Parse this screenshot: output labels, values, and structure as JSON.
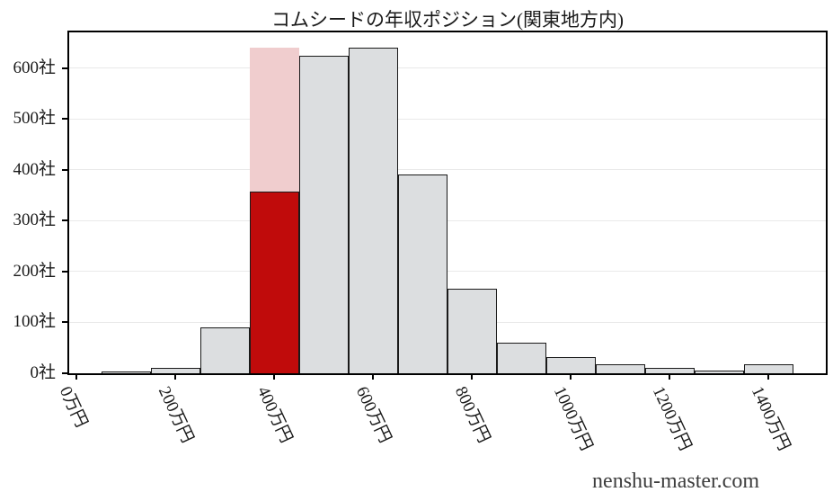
{
  "watermark": {
    "text": "nenshu-master.com"
  },
  "chart_data": {
    "type": "bar",
    "title": "コムシードの年収ポジション(関東地方内)",
    "categories": [
      "100万円",
      "200万円",
      "300万円",
      "400万円",
      "500万円",
      "600万円",
      "700万円",
      "800万円",
      "900万円",
      "1000万円",
      "1100万円",
      "1200万円",
      "1300万円",
      "1400万円"
    ],
    "bin_centers_man_yen": [
      100,
      200,
      300,
      400,
      500,
      600,
      700,
      800,
      900,
      1000,
      1100,
      1200,
      1300,
      1400
    ],
    "bin_width_man_yen": 100,
    "values": [
      2,
      10,
      90,
      358,
      624,
      640,
      390,
      166,
      61,
      32,
      17,
      11,
      6,
      17
    ],
    "ylabel_unit": "社",
    "xlabel_unit": "万円",
    "highlight": {
      "category": "400万円",
      "value": 358,
      "band_top_value": 640
    },
    "x_ticks": [
      {
        "value": 0,
        "label": "0万円"
      },
      {
        "value": 200,
        "label": "200万円"
      },
      {
        "value": 400,
        "label": "400万円"
      },
      {
        "value": 600,
        "label": "600万円"
      },
      {
        "value": 800,
        "label": "800万円"
      },
      {
        "value": 1000,
        "label": "1000万円"
      },
      {
        "value": 1200,
        "label": "1200万円"
      },
      {
        "value": 1400,
        "label": "1400万円"
      }
    ],
    "y_ticks": [
      {
        "value": 0,
        "label": "0社"
      },
      {
        "value": 100,
        "label": "100社"
      },
      {
        "value": 200,
        "label": "200社"
      },
      {
        "value": 300,
        "label": "300社"
      },
      {
        "value": 400,
        "label": "400社"
      },
      {
        "value": 500,
        "label": "500社"
      },
      {
        "value": 600,
        "label": "600社"
      }
    ],
    "ylim": [
      0,
      670
    ],
    "xlim_man_yen": [
      -15,
      1516
    ],
    "grid": "horizontal",
    "legend": "none",
    "colors": {
      "bar_fill": "#dcdee0",
      "bar_edge": "#1a1a1a",
      "highlight_bar": "#c00b0b",
      "highlight_band": "#f0cdce",
      "gridline": "#e9e9e9",
      "spine": "#000000",
      "text": "#1a1a1a",
      "watermark_text": "#3d3d3d",
      "background": "#ffffff"
    }
  }
}
